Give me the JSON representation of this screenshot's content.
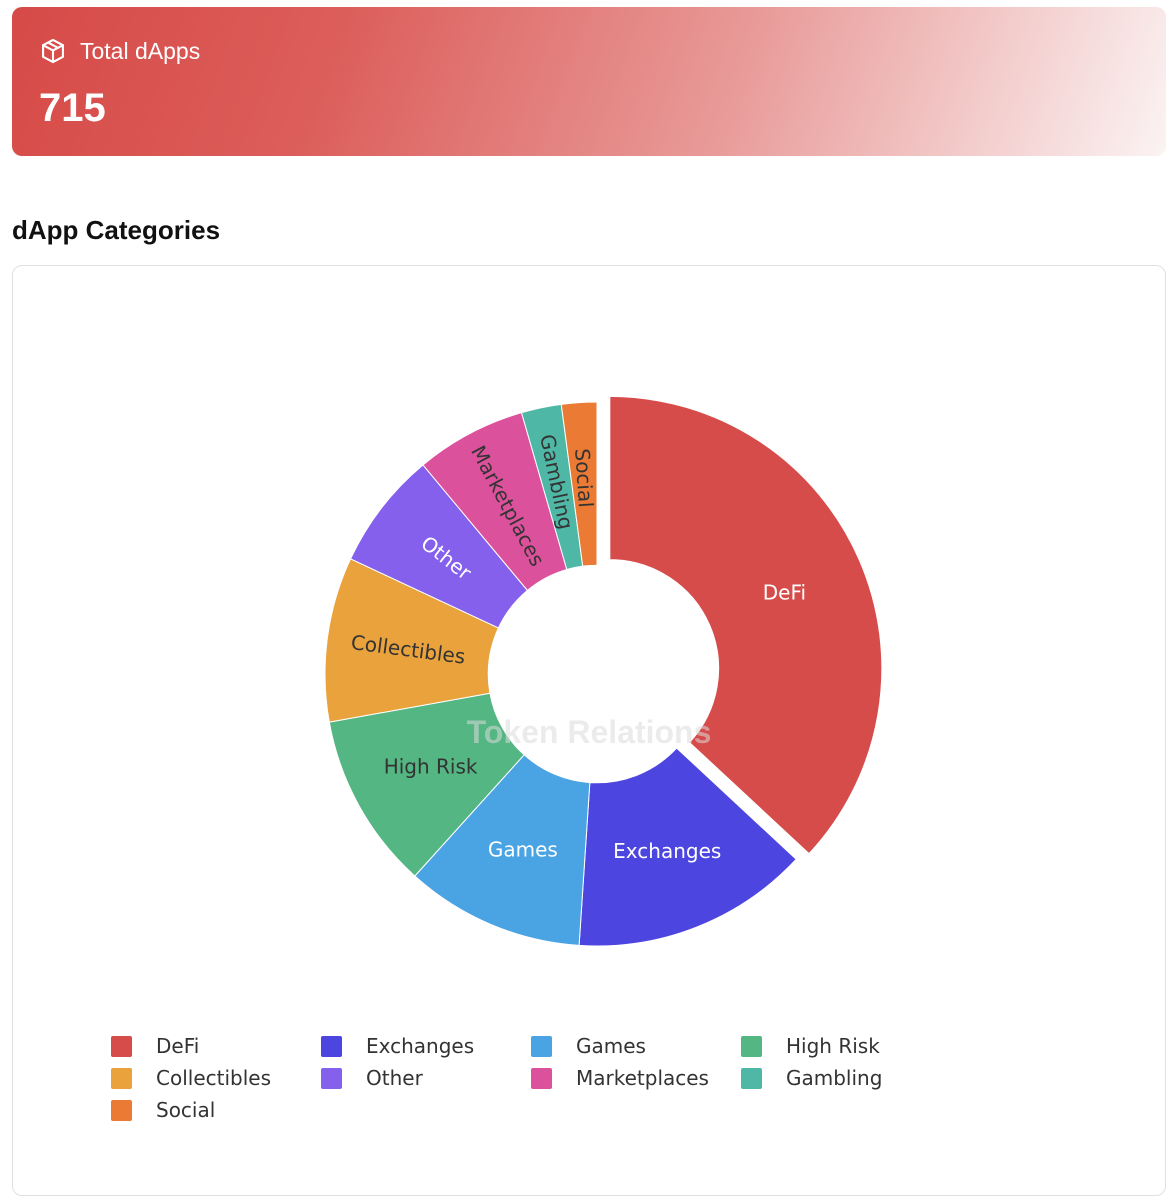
{
  "summary": {
    "label": "Total dApps",
    "value": "715",
    "icon": "cube-icon"
  },
  "section": {
    "title": "dApp Categories"
  },
  "watermark": "Token Relations",
  "chart_data": {
    "type": "pie",
    "hole": 0.4,
    "pulled_slice": "DeFi",
    "categories": [
      "DeFi",
      "Exchanges",
      "Games",
      "High Risk",
      "Collectibles",
      "Other",
      "Marketplaces",
      "Gambling",
      "Social"
    ],
    "values": [
      264,
      101,
      76,
      75,
      70,
      50,
      47,
      17,
      15
    ],
    "colors": [
      "#d64c4a",
      "#4c45df",
      "#4aa3e3",
      "#53b683",
      "#e9a23c",
      "#8460ed",
      "#dc519b",
      "#4fb7a5",
      "#eb7a35"
    ],
    "legend": {
      "placement": "bottom",
      "items": [
        {
          "label": "DeFi",
          "color": "#d64c4a"
        },
        {
          "label": "Exchanges",
          "color": "#4c45df"
        },
        {
          "label": "Games",
          "color": "#4aa3e3"
        },
        {
          "label": "High Risk",
          "color": "#53b683"
        },
        {
          "label": "Collectibles",
          "color": "#e9a23c"
        },
        {
          "label": "Other",
          "color": "#8460ed"
        },
        {
          "label": "Marketplaces",
          "color": "#dc519b"
        },
        {
          "label": "Gambling",
          "color": "#4fb7a5"
        },
        {
          "label": "Social",
          "color": "#eb7a35"
        }
      ]
    }
  }
}
